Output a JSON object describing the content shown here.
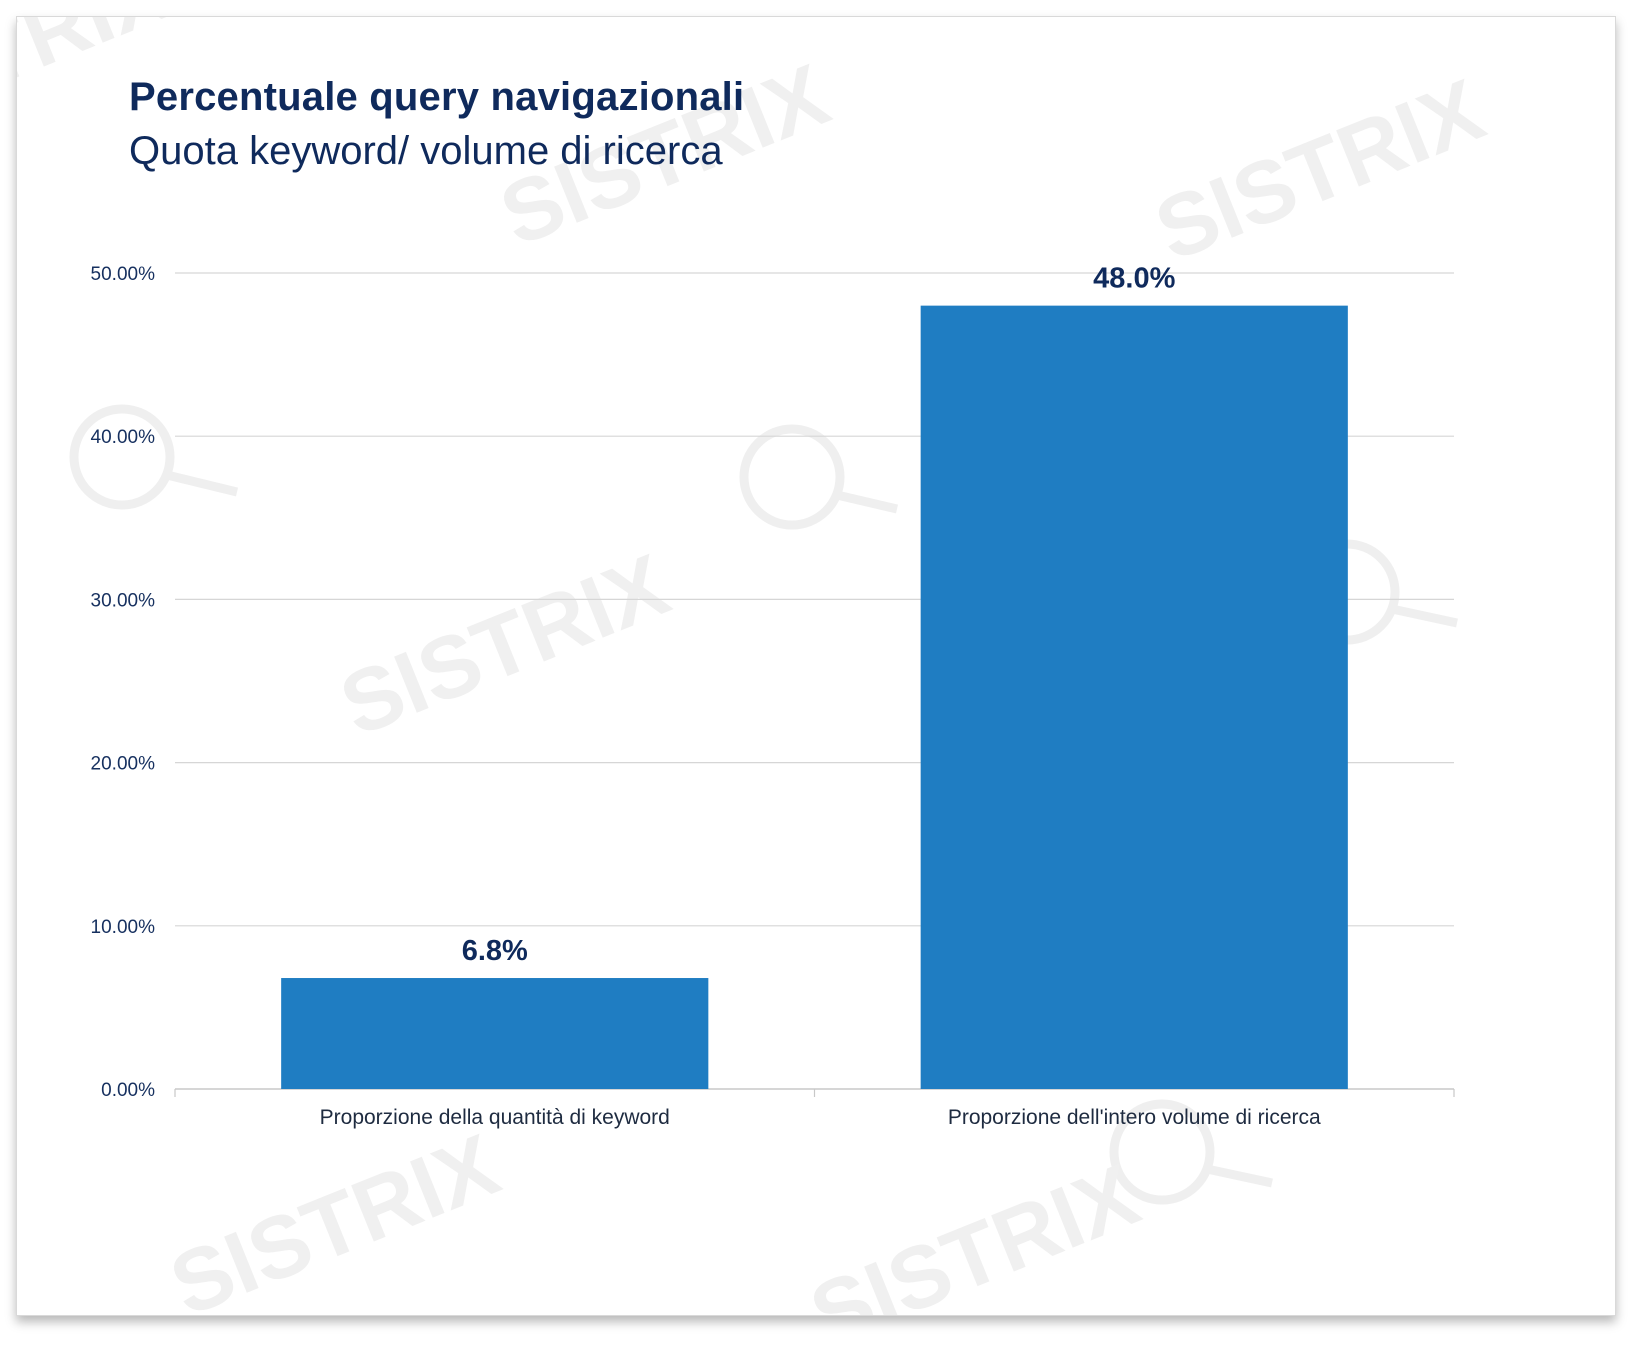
{
  "chart": {
    "title": "Percentuale query navigazionali",
    "subtitle": "Quota keyword/ volume di ricerca"
  },
  "watermark": {
    "text": "SISTRIX"
  },
  "colors": {
    "bar": "#1f7dc2",
    "title": "#0f2a5c",
    "grid": "#d6d6d6",
    "watermark": "#efefef"
  },
  "chart_data": {
    "type": "bar",
    "title": "Percentuale query navigazionali",
    "subtitle": "Quota keyword/ volume di ricerca",
    "categories": [
      "Proporzione della quantità di keyword",
      "Proporzione dell'intero volume di ricerca"
    ],
    "values": [
      6.8,
      48.0
    ],
    "value_labels": [
      "6.8%",
      "48.0%"
    ],
    "y_ticks": [
      0,
      10,
      20,
      30,
      40,
      50
    ],
    "y_tick_labels": [
      "0.00%",
      "10.00%",
      "20.00%",
      "30.00%",
      "40.00%",
      "50.00%"
    ],
    "ylim": [
      0,
      50
    ],
    "xlabel": "",
    "ylabel": "",
    "grid": true,
    "legend": "none"
  }
}
